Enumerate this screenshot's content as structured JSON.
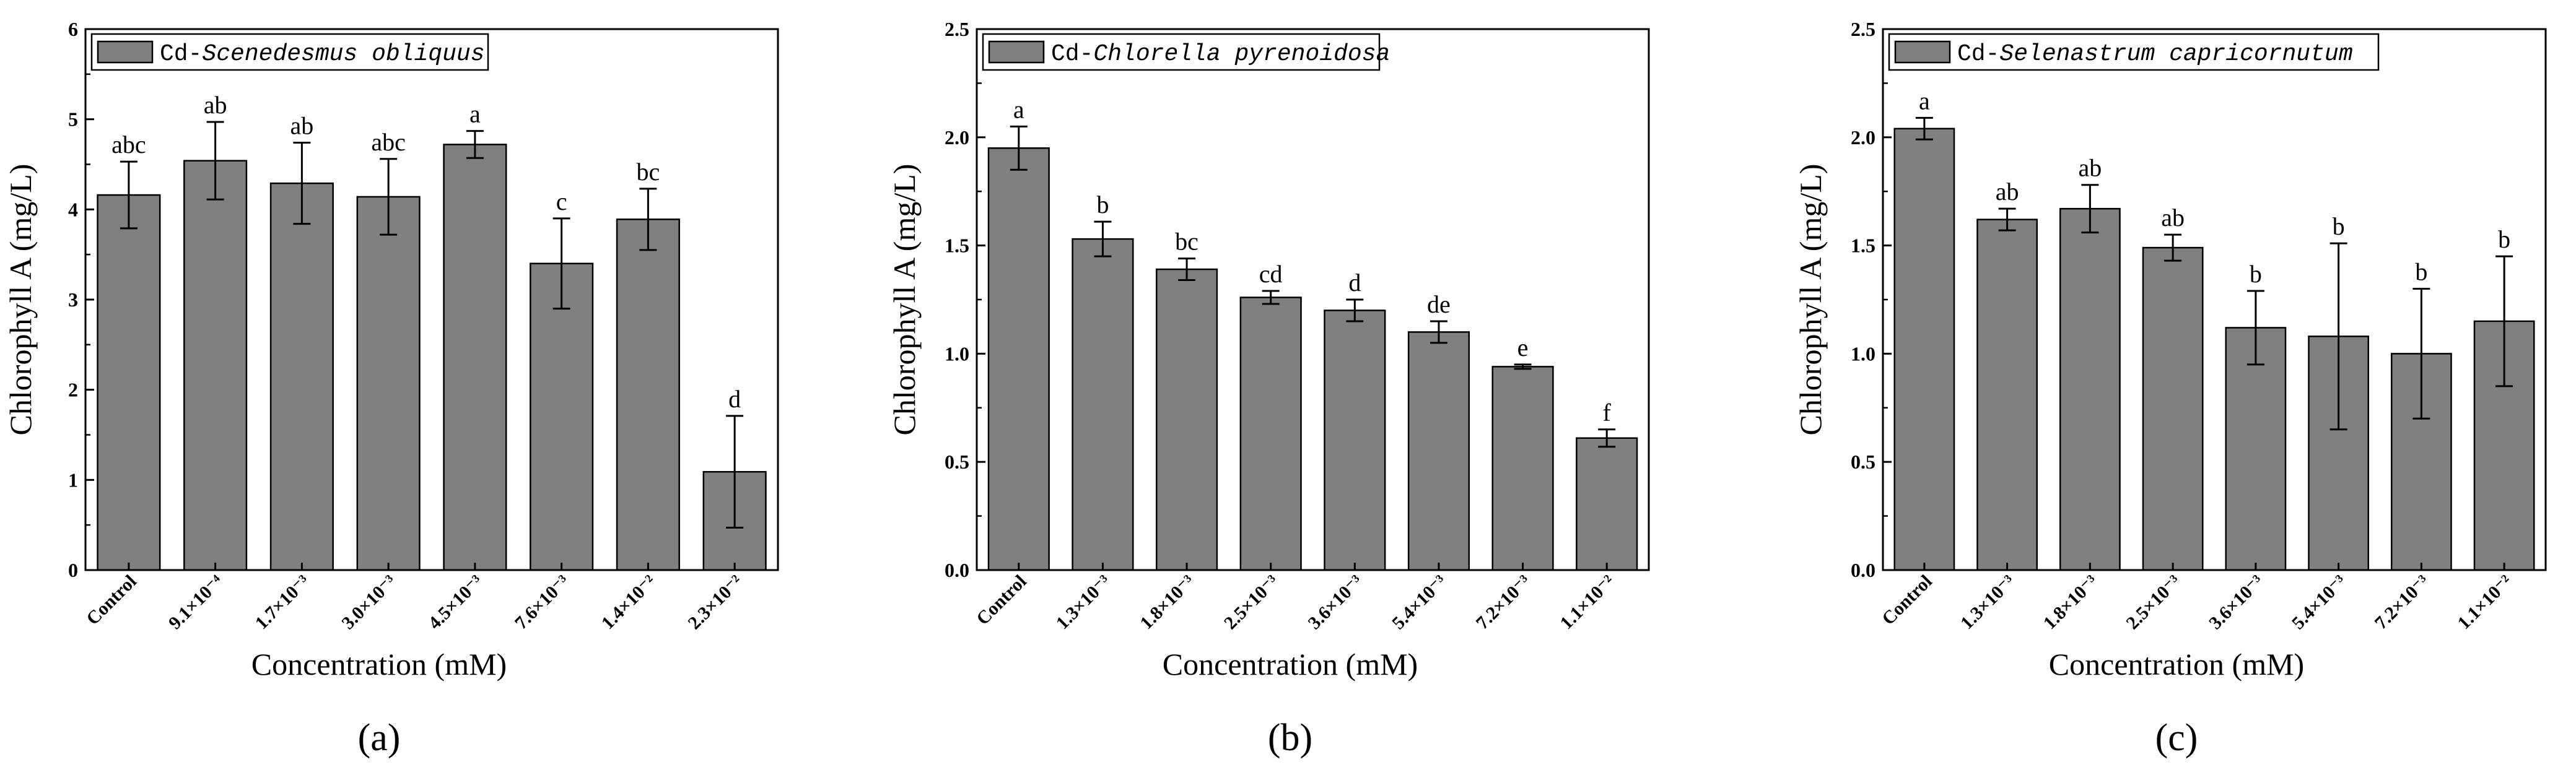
{
  "colors": {
    "bar": "#808080",
    "stroke": "#000000",
    "background": "#ffffff"
  },
  "chart_data": [
    {
      "type": "bar",
      "panel_label": "(a)",
      "legend_prefix": "Cd-",
      "legend_species": "Scenedesmus obliquus",
      "xlabel": "Concentration (mM)",
      "ylabel": "Chlorophyll A (mg/L)",
      "ylim": [
        0,
        6
      ],
      "yticks": [
        "0",
        "1",
        "2",
        "3",
        "4",
        "5",
        "6"
      ],
      "ytick_values": [
        0,
        1,
        2,
        3,
        4,
        5,
        6
      ],
      "categories": [
        "Control",
        "9.1×10⁻⁴",
        "1.7×10⁻³",
        "3.0×10⁻³",
        "4.5×10⁻³",
        "7.6×10⁻³",
        "1.4×10⁻²",
        "2.3×10⁻²"
      ],
      "values": [
        4.16,
        4.54,
        4.29,
        4.14,
        4.72,
        3.4,
        3.89,
        1.09
      ],
      "errors": [
        0.37,
        0.43,
        0.45,
        0.42,
        0.15,
        0.5,
        0.34,
        0.62
      ],
      "significance": [
        "abc",
        "ab",
        "ab",
        "abc",
        "a",
        "c",
        "bc",
        "d"
      ]
    },
    {
      "type": "bar",
      "panel_label": "(b)",
      "legend_prefix": "Cd-",
      "legend_species": "Chlorella pyrenoidosa",
      "xlabel": "Concentration (mM)",
      "ylabel": "Chlorophyll A (mg/L)",
      "ylim": [
        0,
        2.5
      ],
      "yticks": [
        "0.0",
        "0.5",
        "1.0",
        "1.5",
        "2.0",
        "2.5"
      ],
      "ytick_values": [
        0,
        0.5,
        1.0,
        1.5,
        2.0,
        2.5
      ],
      "categories": [
        "Control",
        "1.3×10⁻³",
        "1.8×10⁻³",
        "2.5×10⁻³",
        "3.6×10⁻³",
        "5.4×10⁻³",
        "7.2×10⁻³",
        "1.1×10⁻²"
      ],
      "values": [
        1.95,
        1.53,
        1.39,
        1.26,
        1.2,
        1.1,
        0.94,
        0.61
      ],
      "errors": [
        0.1,
        0.08,
        0.05,
        0.03,
        0.05,
        0.05,
        0.01,
        0.04
      ],
      "significance": [
        "a",
        "b",
        "bc",
        "cd",
        "d",
        "de",
        "e",
        "f"
      ]
    },
    {
      "type": "bar",
      "panel_label": "(c)",
      "legend_prefix": "Cd-",
      "legend_species": "Selenastrum capricornutum",
      "xlabel": "Concentration (mM)",
      "ylabel": "Chlorophyll A (mg/L)",
      "ylim": [
        0,
        2.5
      ],
      "yticks": [
        "0.0",
        "0.5",
        "1.0",
        "1.5",
        "2.0",
        "2.5"
      ],
      "ytick_values": [
        0,
        0.5,
        1.0,
        1.5,
        2.0,
        2.5
      ],
      "categories": [
        "Control",
        "1.3×10⁻³",
        "1.8×10⁻³",
        "2.5×10⁻³",
        "3.6×10⁻³",
        "5.4×10⁻³",
        "7.2×10⁻³",
        "1.1×10⁻²"
      ],
      "values": [
        2.04,
        1.62,
        1.67,
        1.49,
        1.12,
        1.08,
        1.0,
        1.15
      ],
      "errors": [
        0.05,
        0.05,
        0.11,
        0.06,
        0.17,
        0.43,
        0.3,
        0.3
      ],
      "significance": [
        "a",
        "ab",
        "ab",
        "ab",
        "b",
        "b",
        "b",
        "b"
      ]
    }
  ]
}
